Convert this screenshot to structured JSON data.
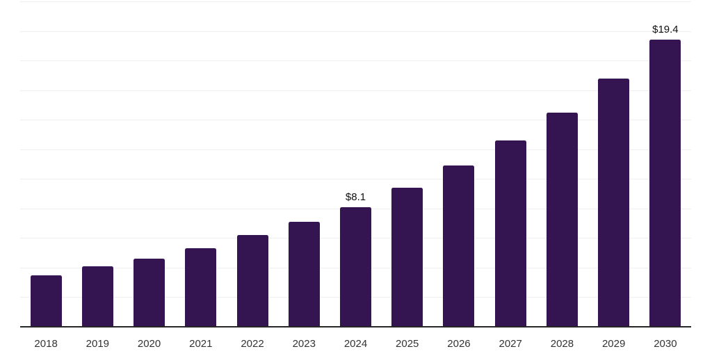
{
  "chart_data": {
    "type": "bar",
    "title": "",
    "xlabel": "",
    "ylabel": "",
    "categories": [
      "2018",
      "2019",
      "2020",
      "2021",
      "2022",
      "2023",
      "2024",
      "2025",
      "2026",
      "2027",
      "2028",
      "2029",
      "2030"
    ],
    "values": [
      3.5,
      4.1,
      4.6,
      5.3,
      6.2,
      7.1,
      8.1,
      9.4,
      10.9,
      12.6,
      14.5,
      16.8,
      19.4
    ],
    "data_labels": [
      {
        "category": "2024",
        "text": "$8.1"
      },
      {
        "category": "2030",
        "text": "$19.4"
      }
    ],
    "ylim": [
      0,
      22
    ],
    "grid_step": 2,
    "grid": "horizontal",
    "legend": "none",
    "y_tick_labels_visible": false
  },
  "colors": {
    "bar": "#351452",
    "gridline": "#efefef",
    "axis_line": "#262626",
    "data_label": "#111111",
    "tick_label": "#333333",
    "background": "#ffffff"
  }
}
